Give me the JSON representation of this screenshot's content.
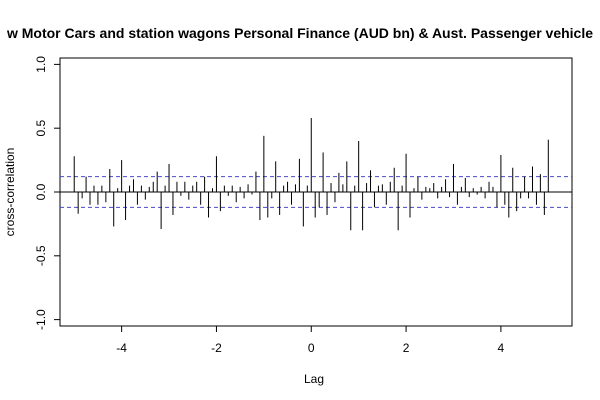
{
  "chart_data": {
    "type": "bar",
    "title": "w Motor Cars and station wagons Personal Finance (AUD bn) & Aust. Passenger vehicle",
    "xlabel": "Lag",
    "ylabel": "cross-correlation",
    "xlim": [
      -5.3,
      5.5
    ],
    "ylim": [
      -1.05,
      1.05
    ],
    "xticks": [
      -4,
      -2,
      0,
      2,
      4
    ],
    "xtick_labels": [
      "-4",
      "-2",
      "0",
      "2",
      "4"
    ],
    "yticks": [
      -1.0,
      -0.5,
      0.0,
      0.5,
      1.0
    ],
    "ytick_labels": [
      "-1.0",
      "-0.5",
      "0.0",
      "0.5",
      "1.0"
    ],
    "confidence_bounds": [
      0.12,
      -0.12
    ],
    "colors": {
      "bars": "#000000",
      "zero_line": "#000000",
      "confidence": "#4a4ac8",
      "frame": "#000000"
    },
    "series": [
      {
        "lag": [
          -5.0,
          -4.917,
          -4.833,
          -4.75,
          -4.667,
          -4.583,
          -4.5,
          -4.417,
          -4.333,
          -4.25,
          -4.167,
          -4.083,
          -4.0,
          -3.917,
          -3.833,
          -3.75,
          -3.667,
          -3.583,
          -3.5,
          -3.417,
          -3.333,
          -3.25,
          -3.167,
          -3.083,
          -3.0,
          -2.917,
          -2.833,
          -2.75,
          -2.667,
          -2.583,
          -2.5,
          -2.417,
          -2.333,
          -2.25,
          -2.167,
          -2.083,
          -2.0,
          -1.917,
          -1.833,
          -1.75,
          -1.667,
          -1.583,
          -1.5,
          -1.417,
          -1.333,
          -1.25,
          -1.167,
          -1.083,
          -1.0,
          -0.917,
          -0.833,
          -0.75,
          -0.667,
          -0.583,
          -0.5,
          -0.417,
          -0.333,
          -0.25,
          -0.167,
          -0.083,
          0.0,
          0.083,
          0.167,
          0.25,
          0.333,
          0.417,
          0.5,
          0.583,
          0.667,
          0.75,
          0.833,
          0.917,
          1.0,
          1.083,
          1.167,
          1.25,
          1.333,
          1.417,
          1.5,
          1.583,
          1.667,
          1.75,
          1.833,
          1.917,
          2.0,
          2.083,
          2.167,
          2.25,
          2.333,
          2.417,
          2.5,
          2.583,
          2.667,
          2.75,
          2.833,
          2.917,
          3.0,
          3.083,
          3.167,
          3.25,
          3.333,
          3.417,
          3.5,
          3.583,
          3.667,
          3.75,
          3.833,
          3.917,
          4.0,
          4.083,
          4.167,
          4.25,
          4.333,
          4.417,
          4.5,
          4.583,
          4.667,
          4.75,
          4.833,
          4.917,
          5.0
        ],
        "values": [
          0.28,
          -0.17,
          -0.05,
          0.12,
          -0.1,
          0.05,
          -0.1,
          0.05,
          -0.08,
          0.18,
          -0.27,
          0.03,
          0.25,
          -0.22,
          0.05,
          0.1,
          -0.1,
          0.05,
          -0.06,
          0.04,
          0.08,
          0.16,
          -0.29,
          0.05,
          0.22,
          -0.18,
          0.08,
          -0.03,
          0.08,
          -0.06,
          0.05,
          0.08,
          -0.1,
          0.12,
          -0.2,
          0.03,
          0.28,
          -0.15,
          0.05,
          -0.03,
          0.05,
          -0.08,
          0.04,
          -0.05,
          0.06,
          -0.02,
          0.16,
          -0.22,
          0.44,
          -0.2,
          -0.05,
          0.24,
          -0.18,
          0.05,
          0.08,
          -0.1,
          0.06,
          0.26,
          -0.27,
          0.05,
          0.58,
          -0.2,
          -0.12,
          0.31,
          -0.18,
          0.07,
          -0.08,
          0.15,
          0.06,
          0.24,
          -0.3,
          0.05,
          0.4,
          -0.3,
          0.07,
          0.17,
          -0.12,
          0.05,
          0.06,
          -0.1,
          0.08,
          0.19,
          -0.3,
          0.05,
          0.3,
          -0.2,
          0.03,
          0.12,
          -0.06,
          0.04,
          0.03,
          0.07,
          -0.05,
          0.04,
          0.1,
          -0.04,
          0.22,
          -0.1,
          0.04,
          0.11,
          -0.04,
          0.03,
          -0.02,
          0.04,
          -0.05,
          0.08,
          0.04,
          -0.12,
          0.29,
          -0.1,
          -0.2,
          0.19,
          -0.15,
          -0.05,
          0.12,
          -0.05,
          0.2,
          -0.1,
          0.14,
          -0.18,
          0.41
        ]
      }
    ]
  }
}
